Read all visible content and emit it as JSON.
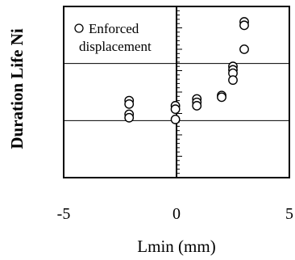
{
  "chart_data": {
    "type": "scatter",
    "title": "",
    "xlabel": "Lmin (mm)",
    "ylabel": "Duration Life Ni",
    "xlim": [
      -5,
      5
    ],
    "x_ticks": [
      "-5",
      "0",
      "5"
    ],
    "x_tick_values": [
      -5,
      0,
      5
    ],
    "y_gridlines": [
      0.333,
      0.667
    ],
    "grid": "horizontal",
    "legend": {
      "placement": "top-left",
      "marker": "open-circle",
      "lines": [
        "Enforced",
        "displacement"
      ]
    },
    "series": [
      {
        "name": "Enforced displacement",
        "marker": "open-circle",
        "x": [
          -2.1,
          -2.1,
          -2.1,
          -2.1,
          -0.05,
          -0.05,
          -0.05,
          0.9,
          0.9,
          0.9,
          2.0,
          2.0,
          2.5,
          2.5,
          2.5,
          2.5,
          3.0,
          3.0,
          3.0
        ],
        "y": [
          0.45,
          0.43,
          0.37,
          0.35,
          0.42,
          0.4,
          0.34,
          0.46,
          0.44,
          0.42,
          0.48,
          0.47,
          0.65,
          0.63,
          0.61,
          0.57,
          0.91,
          0.89,
          0.75
        ]
      }
    ]
  },
  "colors": {
    "marker_edge": "#000000",
    "marker_fill": "#ffffff",
    "axis": "#000000",
    "gridline": "#000000"
  }
}
